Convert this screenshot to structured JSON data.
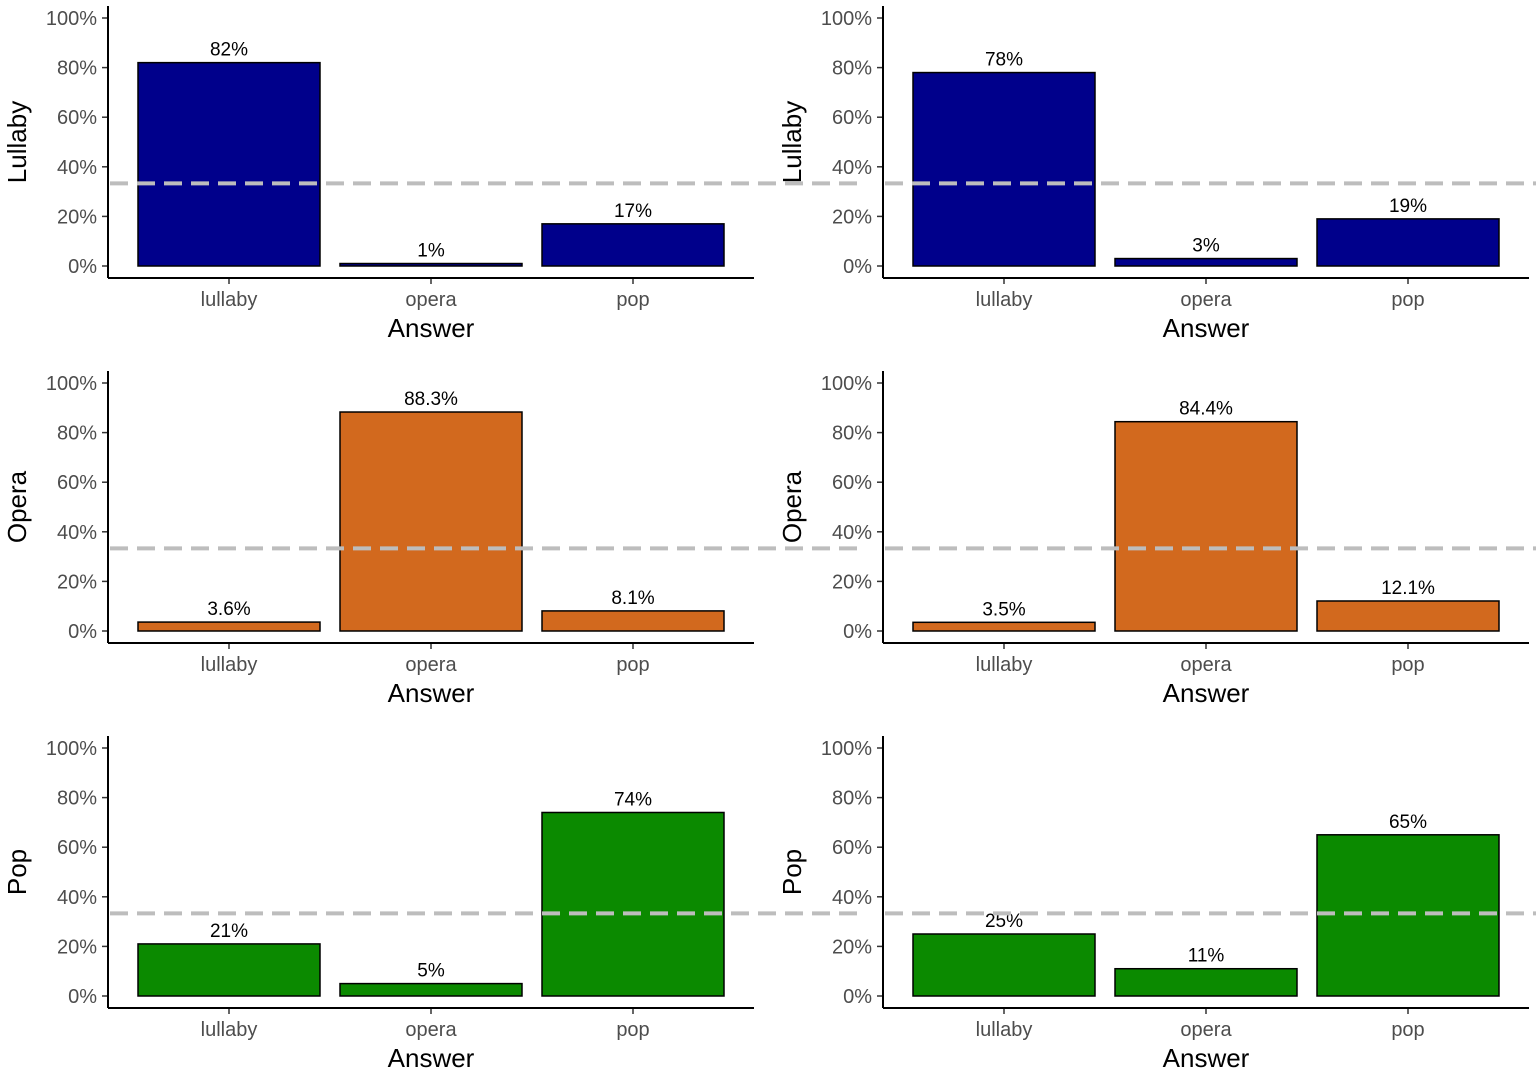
{
  "chart_data": [
    {
      "type": "bar",
      "ylabel": "Lullaby",
      "xlabel": "Answer",
      "categories": [
        "lullaby",
        "opera",
        "pop"
      ],
      "values": [
        82,
        1,
        17
      ],
      "labels": [
        "82%",
        "1%",
        "17%"
      ],
      "color": "#00008B",
      "reference_line": 33.3,
      "ylim": [
        0,
        100
      ],
      "yticks": [
        "0%",
        "20%",
        "40%",
        "60%",
        "80%",
        "100%"
      ]
    },
    {
      "type": "bar",
      "ylabel": "Lullaby",
      "xlabel": "Answer",
      "categories": [
        "lullaby",
        "opera",
        "pop"
      ],
      "values": [
        78,
        3,
        19
      ],
      "labels": [
        "78%",
        "3%",
        "19%"
      ],
      "color": "#00008B",
      "reference_line": 33.3,
      "ylim": [
        0,
        100
      ],
      "yticks": [
        "0%",
        "20%",
        "40%",
        "60%",
        "80%",
        "100%"
      ]
    },
    {
      "type": "bar",
      "ylabel": "Opera",
      "xlabel": "Answer",
      "categories": [
        "lullaby",
        "opera",
        "pop"
      ],
      "values": [
        3.6,
        88.3,
        8.1
      ],
      "labels": [
        "3.6%",
        "88.3%",
        "8.1%"
      ],
      "color": "#D2691E",
      "reference_line": 33.3,
      "ylim": [
        0,
        100
      ],
      "yticks": [
        "0%",
        "20%",
        "40%",
        "60%",
        "80%",
        "100%"
      ]
    },
    {
      "type": "bar",
      "ylabel": "Opera",
      "xlabel": "Answer",
      "categories": [
        "lullaby",
        "opera",
        "pop"
      ],
      "values": [
        3.5,
        84.4,
        12.1
      ],
      "labels": [
        "3.5%",
        "84.4%",
        "12.1%"
      ],
      "color": "#D2691E",
      "reference_line": 33.3,
      "ylim": [
        0,
        100
      ],
      "yticks": [
        "0%",
        "20%",
        "40%",
        "60%",
        "80%",
        "100%"
      ]
    },
    {
      "type": "bar",
      "ylabel": "Pop",
      "xlabel": "Answer",
      "categories": [
        "lullaby",
        "opera",
        "pop"
      ],
      "values": [
        21,
        5,
        74
      ],
      "labels": [
        "21%",
        "5%",
        "74%"
      ],
      "color": "#0B8A00",
      "reference_line": 33.3,
      "ylim": [
        0,
        100
      ],
      "yticks": [
        "0%",
        "20%",
        "40%",
        "60%",
        "80%",
        "100%"
      ]
    },
    {
      "type": "bar",
      "ylabel": "Pop",
      "xlabel": "Answer",
      "categories": [
        "lullaby",
        "opera",
        "pop"
      ],
      "values": [
        25,
        11,
        65
      ],
      "labels": [
        "25%",
        "11%",
        "65%"
      ],
      "color": "#0B8A00",
      "reference_line": 33.3,
      "ylim": [
        0,
        100
      ],
      "yticks": [
        "0%",
        "20%",
        "40%",
        "60%",
        "80%",
        "100%"
      ]
    }
  ]
}
